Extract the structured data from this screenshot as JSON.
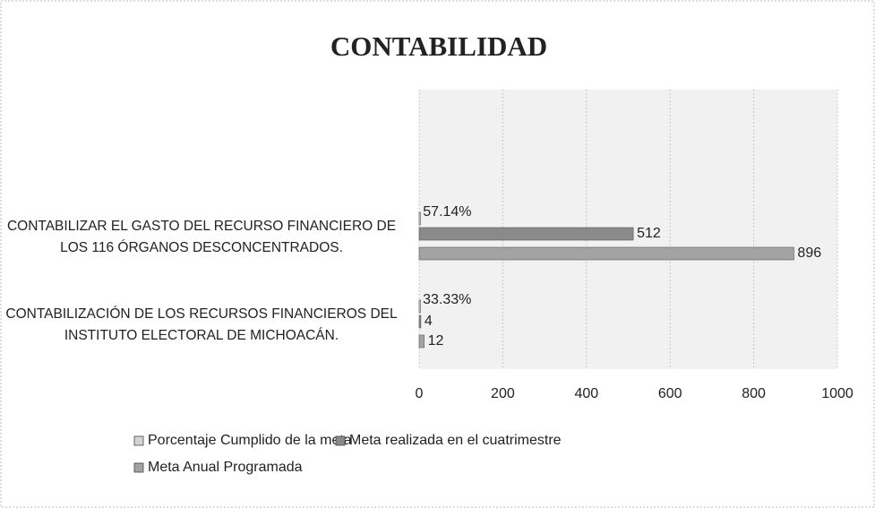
{
  "chart_data": {
    "type": "hbar",
    "title": "CONTABILIDAD",
    "categories": [
      "CONTABILIZAR EL GASTO DEL RECURSO FINANCIERO DE LOS 116 ÓRGANOS DESCONCENTRADOS.",
      "CONTABILIZACIÓN DE LOS RECURSOS FINANCIEROS DEL INSTITUTO ELECTORAL DE MICHOACÁN."
    ],
    "series": [
      {
        "name": "Porcentaje Cumplido de la meta",
        "color": "#d4d4d4",
        "values": [
          0.5714,
          0.3333
        ],
        "value_labels": [
          "57.14%",
          "33.33%"
        ]
      },
      {
        "name": "Meta realizada en el cuatrimestre",
        "color": "#8a8a8a",
        "values": [
          512,
          4
        ]
      },
      {
        "name": "Meta Anual Programada",
        "color": "#a3a3a3",
        "values": [
          896,
          12
        ]
      }
    ],
    "xlim": [
      0,
      1000
    ],
    "xticks": [
      0,
      200,
      400,
      600,
      800,
      1000
    ],
    "grid": true
  }
}
